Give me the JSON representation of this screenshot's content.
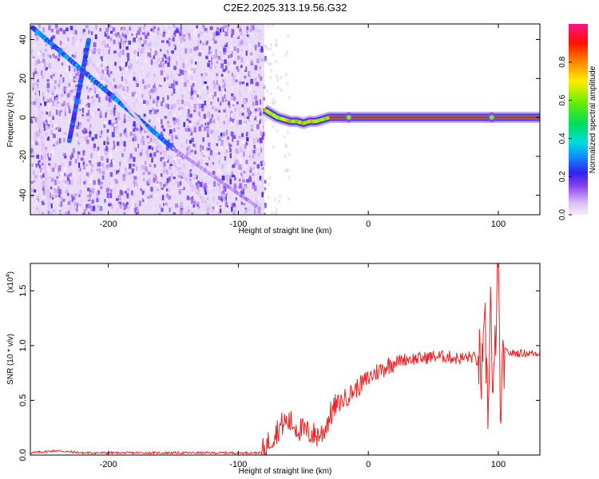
{
  "page_title": "C2E2.2025.313.19.56.G32",
  "chart_data": [
    {
      "type": "heatmap",
      "name": "spectrogram",
      "xlabel": "Height of straight line (km)",
      "ylabel": "Frequency (Hz)",
      "xlim": [
        -260,
        132
      ],
      "ylim": [
        -50,
        48
      ],
      "x_ticks": [
        -200,
        -100,
        0,
        100
      ],
      "x_tick_labels": [
        "-200",
        "-100",
        "0",
        "100"
      ],
      "y_ticks": [
        -40,
        -20,
        0,
        20,
        40
      ],
      "y_tick_labels": [
        "-40",
        "-20",
        "0",
        "20",
        "40"
      ],
      "noise_region_x": [
        -260,
        -80
      ],
      "diagonal_tracks": [
        {
          "x": [
            -258,
            -150
          ],
          "y": [
            46,
            -16
          ],
          "strength": 0.3
        },
        {
          "x": [
            -150,
            -83
          ],
          "y": [
            -16,
            -47
          ],
          "strength": 0.1
        },
        {
          "x": [
            -230,
            -215
          ],
          "y": [
            -12,
            40
          ],
          "strength": 0.25
        },
        {
          "x": [
            -215,
            -120
          ],
          "y": [
            30,
            -48
          ],
          "strength": 0.05
        },
        {
          "x": [
            -255,
            -245
          ],
          "y": [
            15,
            -48
          ],
          "strength": 0.05
        }
      ],
      "main_track": {
        "x": [
          -80,
          -75,
          -70,
          -65,
          -60,
          -55,
          -50,
          -45,
          -40,
          -35,
          -30,
          0,
          50,
          132
        ],
        "y": [
          4,
          2,
          0,
          -1,
          -2,
          -2,
          -3,
          -2,
          -2,
          -1,
          0,
          0,
          0,
          0
        ]
      },
      "colorbar": {
        "label": "Normalized spectral amplitude",
        "ticks": [
          "0.0",
          "0.2",
          "0.4",
          "0.6",
          "0.8"
        ],
        "tick_values": [
          0,
          0.2,
          0.4,
          0.6,
          0.8
        ],
        "range": [
          0,
          1
        ]
      }
    },
    {
      "type": "line",
      "name": "snr",
      "xlabel": "Height of straight line (km)",
      "ylabel": "SNR (10 * v/v)",
      "scale_label": "(x10",
      "scale_exponent": "4",
      "scale_close": ")",
      "xlim": [
        -260,
        132
      ],
      "ylim": [
        0,
        1.75
      ],
      "x_ticks": [
        -200,
        -100,
        0,
        100
      ],
      "x_tick_labels": [
        "-200",
        "-100",
        "0",
        "100"
      ],
      "y_ticks": [
        0,
        0.5,
        1.0,
        1.5
      ],
      "y_tick_labels": [
        "0.0",
        "0.5",
        "1.0",
        "1.5"
      ],
      "color": "#ee2222",
      "series": {
        "x": [
          -260,
          -240,
          -220,
          -200,
          -180,
          -150,
          -120,
          -100,
          -82,
          -72,
          -65,
          -60,
          -55,
          -50,
          -45,
          -40,
          -35,
          -30,
          -25,
          -20,
          -15,
          -10,
          -5,
          0,
          5,
          10,
          15,
          20,
          30,
          40,
          50,
          60,
          70,
          80,
          85,
          88,
          90,
          92,
          94,
          96,
          98,
          100,
          102,
          104,
          110,
          120,
          132
        ],
        "y": [
          0.02,
          0.04,
          0.02,
          0.02,
          0.02,
          0.02,
          0.02,
          0.02,
          0.02,
          0.2,
          0.3,
          0.3,
          0.25,
          0.22,
          0.2,
          0.18,
          0.2,
          0.35,
          0.45,
          0.5,
          0.55,
          0.6,
          0.65,
          0.7,
          0.75,
          0.78,
          0.82,
          0.85,
          0.88,
          0.88,
          0.9,
          0.9,
          0.88,
          0.9,
          0.85,
          0.7,
          1.1,
          0.4,
          1.45,
          0.3,
          1.2,
          1.72,
          0.2,
          0.95,
          0.93,
          0.93,
          0.93
        ]
      }
    }
  ]
}
